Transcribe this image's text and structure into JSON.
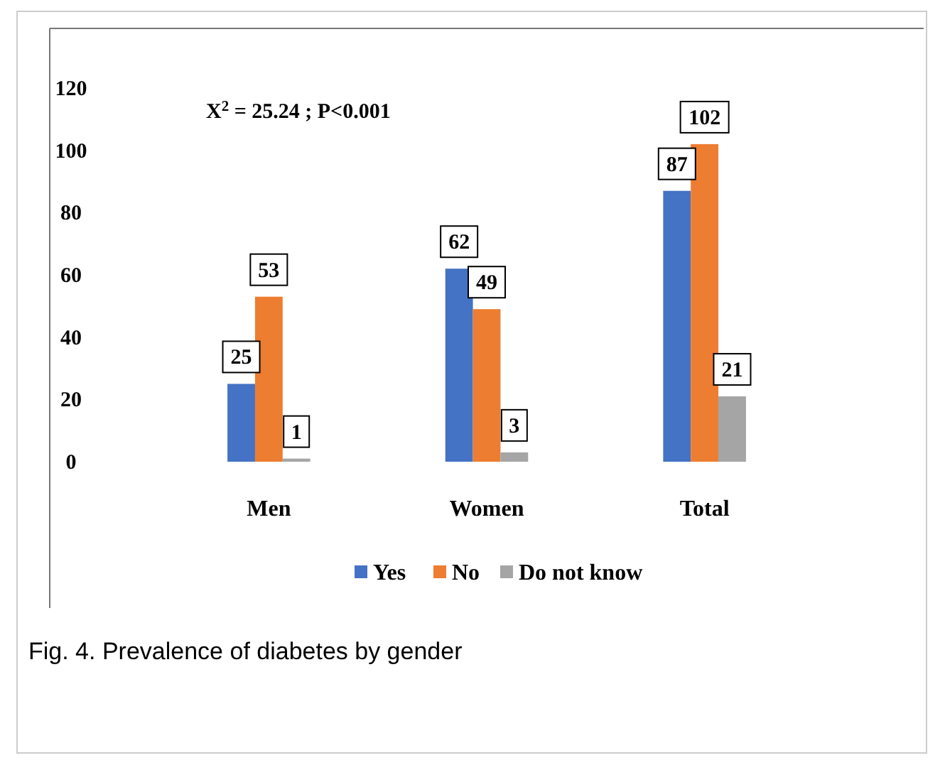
{
  "chart_data": {
    "type": "bar",
    "categories": [
      "Men",
      "Women",
      "Total"
    ],
    "series": [
      {
        "name": "Yes",
        "color": "#4472c4",
        "values": [
          25,
          62,
          87
        ]
      },
      {
        "name": "No",
        "color": "#ed7d31",
        "values": [
          53,
          49,
          102
        ]
      },
      {
        "name": "Do not know",
        "color": "#a5a5a5",
        "values": [
          1,
          3,
          21
        ]
      }
    ],
    "ylim": [
      0,
      120
    ],
    "yticks": [
      0,
      20,
      40,
      60,
      80,
      100,
      120
    ],
    "legend": "bottom",
    "data_labels": true,
    "annotations": [
      "X$^{2}$ = 25.24 ; P<0.001",
      "Fig. 4. Prevalence of diabetes by gender"
    ]
  }
}
